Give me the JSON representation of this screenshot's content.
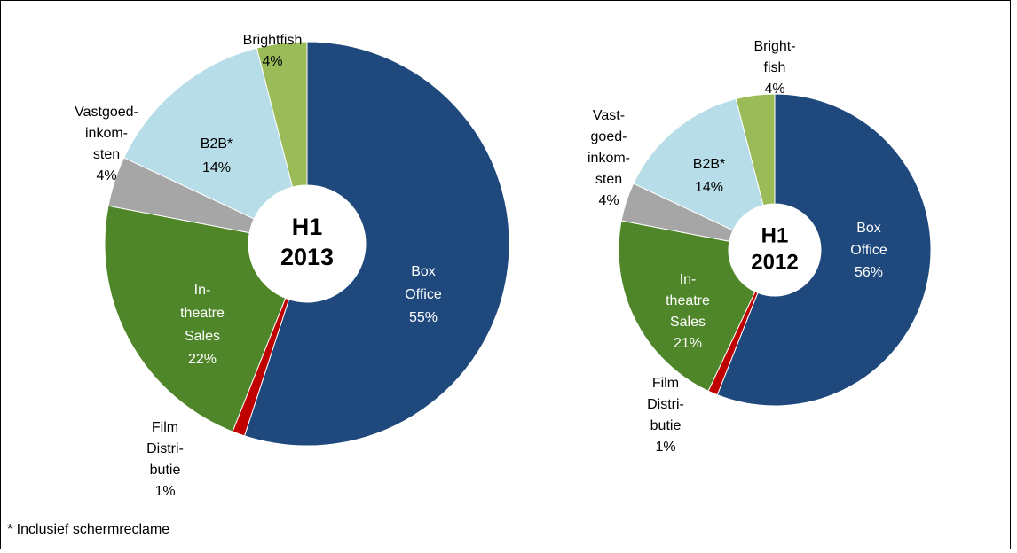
{
  "chart_data": [
    {
      "type": "donut",
      "center_label": [
        "H1",
        "2013"
      ],
      "categories": [
        [
          "Box",
          "Office"
        ],
        [
          "Film",
          "Distri-",
          "butie"
        ],
        [
          "In-",
          "theatre",
          "Sales"
        ],
        [
          "Vastgoed-",
          "inkom-",
          "sten"
        ],
        [
          "B2B*"
        ],
        [
          "Brightfish"
        ]
      ],
      "values": [
        55,
        1,
        22,
        4,
        14,
        4
      ],
      "value_labels": [
        "55%",
        "1%",
        "22%",
        "4%",
        "14%",
        "4%"
      ],
      "colors": [
        "#1f497d",
        "#c00000",
        "#4f862a",
        "#a6a6a6",
        "#b7dde8",
        "#9bbb59"
      ]
    },
    {
      "type": "donut",
      "center_label": [
        "H1",
        "2012"
      ],
      "categories": [
        [
          "Box",
          "Office"
        ],
        [
          "Film",
          "Distri-",
          "butie"
        ],
        [
          "In-",
          "theatre",
          "Sales"
        ],
        [
          "Vast-",
          "goed-",
          "inkom-",
          "sten"
        ],
        [
          "B2B*"
        ],
        [
          "Bright-",
          "fish"
        ]
      ],
      "values": [
        56,
        1,
        21,
        4,
        14,
        4
      ],
      "value_labels": [
        "56%",
        "1%",
        "21%",
        "4%",
        "14%",
        "4%"
      ],
      "colors": [
        "#1f497d",
        "#c00000",
        "#4f862a",
        "#a6a6a6",
        "#b7dde8",
        "#9bbb59"
      ]
    }
  ],
  "footnote": "* Inclusief schermreclame"
}
